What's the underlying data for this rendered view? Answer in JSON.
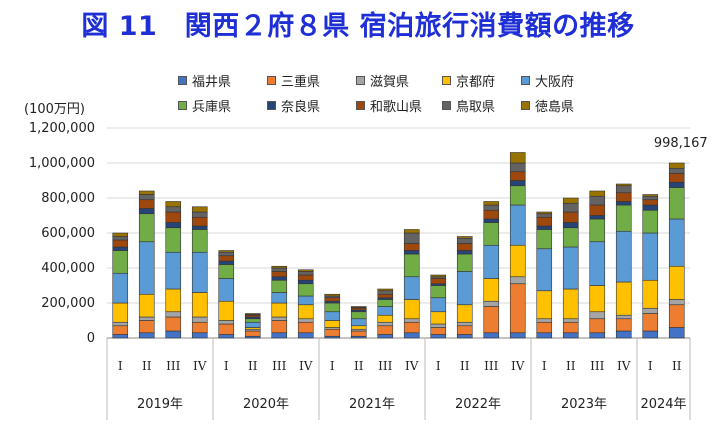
{
  "title": "図 11　関西２府８県 宿泊旅行消費額の推移",
  "unit_label": "(100万円)",
  "colors": {
    "福井県": "#4472c4",
    "三重県": "#ed7d31",
    "滋賀県": "#a5a5a5",
    "京都府": "#ffc000",
    "大阪府": "#5b9bd5",
    "兵庫県": "#70ad47",
    "奈良県": "#264478",
    "和歌山県": "#9e480e",
    "鳥取県": "#636363",
    "徳島県": "#997300"
  },
  "chart_data": {
    "type": "bar",
    "stacked": true,
    "categories": [
      "I",
      "II",
      "III",
      "IV",
      "I",
      "II",
      "III",
      "IV",
      "I",
      "II",
      "III",
      "IV",
      "I",
      "II",
      "III",
      "IV",
      "I",
      "II",
      "III",
      "IV",
      "I",
      "II"
    ],
    "year_groups": [
      {
        "label": "2019年",
        "count": 4
      },
      {
        "label": "2020年",
        "count": 4
      },
      {
        "label": "2021年",
        "count": 4
      },
      {
        "label": "2022年",
        "count": 4
      },
      {
        "label": "2023年",
        "count": 4
      },
      {
        "label": "2024年",
        "count": 2
      }
    ],
    "ylim": [
      0,
      1200000
    ],
    "yticks": [
      "0",
      "200,000",
      "400,000",
      "600,000",
      "800,000",
      "1,000,000",
      "1,200,000"
    ],
    "ytick_values": [
      0,
      200000,
      400000,
      600000,
      800000,
      1000000,
      1200000
    ],
    "grid": true,
    "legend_position": "top",
    "annotations": [
      {
        "category_index": 21,
        "text": "998,167"
      }
    ],
    "series": [
      {
        "name": "福井県",
        "values": [
          20000,
          30000,
          40000,
          30000,
          20000,
          10000,
          30000,
          30000,
          10000,
          10000,
          20000,
          30000,
          20000,
          20000,
          30000,
          30000,
          30000,
          30000,
          30000,
          40000,
          40000,
          60000
        ]
      },
      {
        "name": "三重県",
        "values": [
          50000,
          70000,
          80000,
          60000,
          60000,
          30000,
          70000,
          60000,
          40000,
          30000,
          50000,
          60000,
          40000,
          50000,
          150000,
          280000,
          60000,
          60000,
          80000,
          70000,
          100000,
          130000
        ]
      },
      {
        "name": "滋賀県",
        "values": [
          20000,
          20000,
          30000,
          30000,
          20000,
          10000,
          20000,
          20000,
          10000,
          10000,
          20000,
          20000,
          20000,
          20000,
          30000,
          40000,
          20000,
          20000,
          40000,
          20000,
          30000,
          30000
        ]
      },
      {
        "name": "京都府",
        "values": [
          110000,
          130000,
          130000,
          140000,
          110000,
          10000,
          80000,
          80000,
          40000,
          20000,
          40000,
          110000,
          70000,
          100000,
          130000,
          180000,
          160000,
          170000,
          150000,
          190000,
          160000,
          190000
        ]
      },
      {
        "name": "大阪府",
        "values": [
          170000,
          300000,
          210000,
          230000,
          130000,
          30000,
          60000,
          50000,
          50000,
          40000,
          50000,
          130000,
          80000,
          190000,
          190000,
          230000,
          240000,
          240000,
          250000,
          290000,
          270000,
          270000
        ]
      },
      {
        "name": "兵庫県",
        "values": [
          130000,
          160000,
          140000,
          130000,
          80000,
          20000,
          70000,
          70000,
          50000,
          40000,
          40000,
          130000,
          70000,
          100000,
          130000,
          110000,
          110000,
          110000,
          130000,
          150000,
          130000,
          180000
        ]
      },
      {
        "name": "奈良県",
        "values": [
          20000,
          30000,
          30000,
          20000,
          20000,
          10000,
          20000,
          20000,
          10000,
          10000,
          10000,
          20000,
          10000,
          20000,
          20000,
          30000,
          20000,
          30000,
          20000,
          20000,
          30000,
          30000
        ]
      },
      {
        "name": "和歌山県",
        "values": [
          40000,
          50000,
          60000,
          50000,
          30000,
          10000,
          30000,
          30000,
          20000,
          10000,
          20000,
          40000,
          30000,
          40000,
          50000,
          50000,
          50000,
          60000,
          60000,
          50000,
          30000,
          50000
        ]
      },
      {
        "name": "鳥取県",
        "values": [
          20000,
          30000,
          30000,
          30000,
          20000,
          5000,
          20000,
          20000,
          10000,
          5000,
          20000,
          60000,
          10000,
          30000,
          30000,
          50000,
          20000,
          50000,
          50000,
          40000,
          20000,
          30000
        ]
      },
      {
        "name": "徳島県",
        "values": [
          20000,
          20000,
          30000,
          30000,
          10000,
          5000,
          10000,
          10000,
          10000,
          5000,
          10000,
          20000,
          10000,
          10000,
          20000,
          60000,
          10000,
          30000,
          30000,
          10000,
          10000,
          30000
        ]
      }
    ]
  }
}
